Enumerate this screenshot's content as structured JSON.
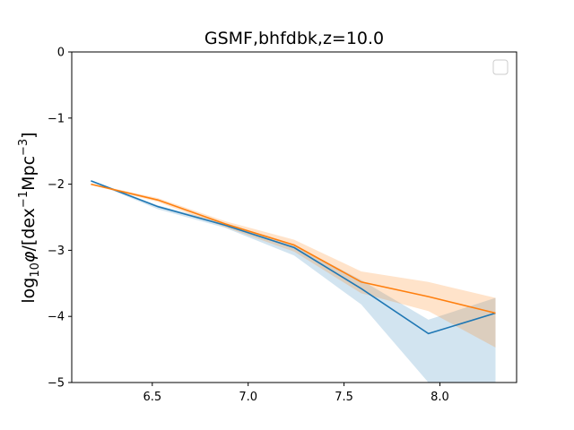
{
  "chart_data": {
    "type": "line",
    "title": "GSMF,bhfdbk,z=10.0",
    "xlabel": "",
    "ylabel_parts": {
      "main": "log",
      "sub": "10",
      "phi": "φ",
      "open": "/[dex",
      "sup1": "−1",
      "mid": "Mpc",
      "sup2": "−3",
      "close": "]"
    },
    "xlim": [
      6.08,
      8.4
    ],
    "ylim": [
      -5,
      0
    ],
    "xticks": [
      6.5,
      7.0,
      7.5,
      8.0
    ],
    "xtick_labels": [
      "6.5",
      "7.0",
      "7.5",
      "8.0"
    ],
    "yticks": [
      0,
      -1,
      -2,
      -3,
      -4,
      -5
    ],
    "ytick_labels": [
      "0",
      "−1",
      "−2",
      "−3",
      "−4",
      "−5"
    ],
    "grid": false,
    "legend": {
      "placement": "top-right",
      "entries": []
    },
    "series": [
      {
        "color": "#1f77b4",
        "x": [
          6.18,
          6.53,
          6.88,
          7.24,
          7.59,
          7.94,
          8.29
        ],
        "y": [
          -1.95,
          -2.34,
          -2.62,
          -2.96,
          -3.58,
          -4.26,
          -3.95
        ],
        "band_upper": [
          -1.94,
          -2.32,
          -2.59,
          -2.92,
          -3.45,
          -4.05,
          -3.72
        ],
        "band_lower": [
          -1.96,
          -2.38,
          -2.66,
          -3.08,
          -3.82,
          -5.0,
          -5.0
        ],
        "band_color": "#1f77b4"
      },
      {
        "color": "#ff7f0e",
        "x": [
          6.18,
          6.53,
          6.88,
          7.24,
          7.59,
          7.94,
          8.29
        ],
        "y": [
          -2.0,
          -2.24,
          -2.6,
          -2.92,
          -3.48,
          -3.7,
          -3.95
        ],
        "band_upper": [
          -1.99,
          -2.21,
          -2.56,
          -2.84,
          -3.32,
          -3.48,
          -3.72
        ],
        "band_lower": [
          -2.01,
          -2.27,
          -2.65,
          -3.02,
          -3.65,
          -3.92,
          -4.47
        ],
        "band_color": "#ff7f0e"
      }
    ]
  }
}
